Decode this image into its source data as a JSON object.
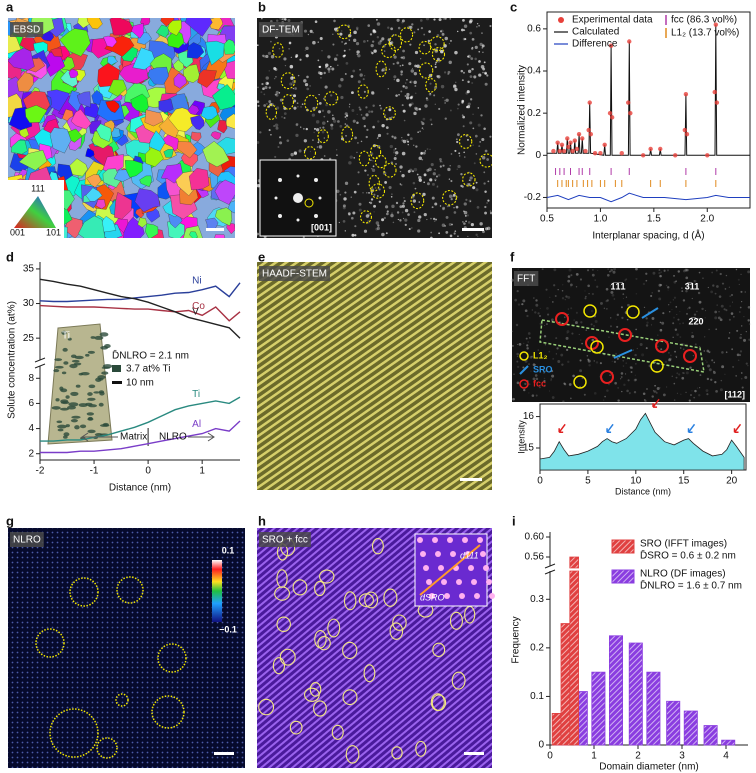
{
  "panel_labels": [
    "a",
    "b",
    "c",
    "d",
    "e",
    "f",
    "g",
    "h",
    "i"
  ],
  "images": {
    "a": {
      "label": "EBSD",
      "legend": [
        "111",
        "001",
        "101"
      ]
    },
    "b": {
      "label": "DF-TEM",
      "inset": "[001]"
    },
    "e": {
      "label": "HAADF-STEM"
    },
    "f": {
      "label": "FFT",
      "spots": [
        "1̅1̅1",
        "3̅11",
        "2̅20"
      ],
      "legend": [
        "L1₂",
        "SRO",
        "fcc"
      ],
      "zone": "[112]"
    },
    "g": {
      "label": "NLRO",
      "colorbar": [
        "0.1",
        "−0.1"
      ]
    },
    "h": {
      "label": "SRO + fcc",
      "inset_labels": [
        "d111",
        "dSRO"
      ]
    }
  },
  "chart_data": [
    {
      "type": "line",
      "xlabel": "Interplanar spacing, d (Å)",
      "ylabel": "Normalized intensity",
      "xlim": [
        0.5,
        2.4
      ],
      "xticks": [
        0.5,
        {
          "value": 1,
          "label": "1.0"
        },
        1.5,
        {
          "value": 2,
          "label": "2.0"
        }
      ],
      "ylim": [
        -0.25,
        0.68
      ],
      "yticks": [
        -0.2,
        0,
        0.2,
        0.4,
        0.6
      ],
      "series": [
        {
          "name": "Experimental data",
          "color": "#e8403a",
          "marker": "circle",
          "x": [
            0.56,
            0.6,
            0.62,
            0.64,
            0.66,
            0.69,
            0.7,
            0.72,
            0.74,
            0.76,
            0.78,
            0.8,
            0.83,
            0.86,
            0.89,
            0.9,
            0.91,
            0.95,
            1.0,
            1.04,
            1.09,
            1.1,
            1.11,
            1.2,
            1.26,
            1.27,
            1.28,
            1.4,
            1.47,
            1.56,
            1.7,
            1.79,
            1.8,
            1.81,
            2.0,
            2.07,
            2.08,
            2.09
          ],
          "values": [
            0.02,
            0.06,
            0.02,
            0.05,
            0.02,
            0.08,
            0.04,
            0.06,
            0.02,
            0.07,
            0.03,
            0.1,
            0.08,
            0.02,
            0.12,
            0.25,
            0.1,
            0.01,
            0.01,
            0.05,
            0.2,
            0.52,
            0.18,
            0.01,
            0.25,
            0.54,
            0.2,
            0.0,
            0.03,
            0.03,
            0.0,
            0.12,
            0.29,
            0.1,
            0.0,
            0.3,
            0.62,
            0.25
          ]
        },
        {
          "name": "Calculated",
          "color": "#111111",
          "x": [
            0.5,
            0.592,
            0.6,
            0.608,
            0.632,
            0.64,
            0.648,
            0.682,
            0.69,
            0.698,
            0.712,
            0.72,
            0.728,
            0.752,
            0.76,
            0.768,
            0.792,
            0.8,
            0.808,
            0.822,
            0.83,
            0.838,
            0.892,
            0.9,
            0.908,
            1.032,
            1.04,
            1.048,
            1.092,
            1.1,
            1.108,
            1.262,
            1.27,
            1.278,
            1.462,
            1.47,
            1.478,
            1.552,
            1.56,
            1.568,
            1.792,
            1.8,
            1.808,
            2.072,
            2.08,
            2.088,
            2.4
          ],
          "values": [
            0.01,
            0.01,
            0.06,
            0.01,
            0.01,
            0.05,
            0.01,
            0.01,
            0.08,
            0.01,
            0.01,
            0.06,
            0.01,
            0.01,
            0.07,
            0.01,
            0.01,
            0.1,
            0.01,
            0.01,
            0.08,
            0.01,
            0.01,
            0.25,
            0.01,
            0,
            0.05,
            0,
            0,
            0.52,
            0,
            0,
            0.54,
            0,
            0,
            0.03,
            0,
            0,
            0.03,
            0,
            0,
            0.29,
            0,
            0,
            0.62,
            0,
            0
          ]
        },
        {
          "name": "Difference",
          "color": "#1f3fbf",
          "x": [
            0.5,
            0.6,
            0.7,
            0.8,
            0.9,
            1.0,
            1.1,
            1.2,
            1.27,
            1.4,
            1.6,
            1.8,
            2.0,
            2.08,
            2.2,
            2.4
          ],
          "values": [
            -0.2,
            -0.19,
            -0.21,
            -0.19,
            -0.2,
            -0.2,
            -0.22,
            -0.2,
            -0.18,
            -0.2,
            -0.2,
            -0.21,
            -0.2,
            -0.19,
            -0.2,
            -0.2
          ]
        }
      ],
      "reflections": [
        {
          "name": "fcc (86.3 vol%)",
          "color": "#b03aa8",
          "x": [
            0.58,
            0.62,
            0.66,
            0.72,
            0.8,
            0.83,
            0.9,
            1.1,
            1.27,
            1.8,
            2.08
          ]
        },
        {
          "name": "L1₂ (13.7 vol%)",
          "color": "#e08a1e",
          "x": [
            0.6,
            0.64,
            0.68,
            0.7,
            0.74,
            0.78,
            0.84,
            0.88,
            0.92,
            1.0,
            1.04,
            1.14,
            1.2,
            1.47,
            1.56,
            1.8,
            2.08
          ]
        }
      ]
    },
    {
      "type": "line",
      "xlabel": "Distance (nm)",
      "ylabel": "Solute concentration (at%)",
      "x": [
        -2,
        -1.75,
        -1.5,
        -1.25,
        -1,
        -0.75,
        -0.5,
        -0.25,
        0,
        0.25,
        0.5,
        0.75,
        1,
        1.25,
        1.5,
        1.7
      ],
      "xlim": [
        -2,
        1.7
      ],
      "xticks": [
        -2,
        -1,
        0,
        1
      ],
      "ylim_upper": [
        23,
        36
      ],
      "yticks_upper": [
        25,
        30,
        35
      ],
      "ylim_lower": [
        1.5,
        8.5
      ],
      "yticks_lower": [
        2,
        4,
        6,
        8
      ],
      "series": [
        {
          "name": "Ni",
          "color": "#2a3f9a",
          "values": [
            30.4,
            30.3,
            30.3,
            30.4,
            30.5,
            30.6,
            30.6,
            30.8,
            31,
            31.2,
            31.5,
            31.6,
            32,
            32.5,
            31,
            33
          ]
        },
        {
          "name": "Co",
          "color": "#a83244",
          "values": [
            29.7,
            29.6,
            29.5,
            29.5,
            29.5,
            29.4,
            29.3,
            29.2,
            29.2,
            29,
            28.8,
            29,
            28.3,
            29.5,
            27.5,
            28.8
          ]
        },
        {
          "name": "V",
          "color": "#222222",
          "values": [
            33.5,
            33.2,
            32.8,
            32.5,
            32,
            31.5,
            31,
            30.7,
            30.2,
            29.5,
            28.8,
            28,
            27.5,
            27,
            26.5,
            25
          ]
        },
        {
          "name": "Ti",
          "color": "#2a8a80",
          "values": [
            3,
            3,
            3.1,
            3.1,
            3.3,
            3.5,
            3.8,
            4.1,
            4.5,
            5,
            5.5,
            5.8,
            6,
            6.2,
            6,
            6.5
          ]
        },
        {
          "name": "Al",
          "color": "#7a3dc8",
          "values": [
            2.1,
            2.1,
            2.1,
            2.2,
            2.2,
            2.3,
            2.4,
            2.6,
            2.8,
            3.0,
            3.2,
            3.4,
            3.6,
            4,
            3.8,
            4.6
          ]
        }
      ],
      "annotations": [
        "D̄NLRO = 2.1 nm",
        "3.7 at% Ti",
        "10 nm",
        "Matrix",
        "NLRO",
        "Ti"
      ]
    },
    {
      "type": "area",
      "xlabel": "Distance (nm)",
      "ylabel": "Intensity",
      "color": "#7fe3ea",
      "x": [
        0,
        1,
        1.5,
        2,
        2.5,
        3,
        4,
        5,
        6,
        6.5,
        7,
        7.5,
        8,
        9,
        10,
        10.5,
        11,
        11.5,
        12,
        13,
        14,
        15,
        15.5,
        16,
        17,
        18,
        19,
        19.5,
        20,
        20.5,
        21.3
      ],
      "values": [
        14.65,
        14.7,
        14.9,
        15.2,
        14.95,
        14.75,
        14.8,
        14.9,
        15.05,
        15.2,
        15.3,
        15.2,
        15.15,
        15.3,
        15.6,
        15.9,
        16.1,
        15.8,
        15.5,
        15.2,
        15.1,
        15.25,
        15.3,
        15.15,
        14.9,
        14.75,
        14.8,
        14.95,
        15.25,
        15.05,
        14.7
      ],
      "xlim": [
        0,
        21.5
      ],
      "xticks": [
        0,
        5,
        10,
        15,
        20
      ],
      "ylim": [
        14.3,
        16.4
      ],
      "yticks": [
        15,
        16
      ]
    },
    {
      "type": "bar",
      "xlabel": "Domain diameter (nm)",
      "ylabel": "Frequency",
      "xlim": [
        0,
        4.5
      ],
      "xticks": [
        0,
        1,
        2,
        3,
        4
      ],
      "ylim_lower": [
        0,
        0.35
      ],
      "yticks_lower": [
        0,
        0.1,
        0.2,
        0.3
      ],
      "ylim_upper": [
        0.55,
        0.61
      ],
      "yticks_upper": [
        0.56,
        {
          "value": 0.6,
          "label": "0.60"
        }
      ],
      "series": [
        {
          "name": "SRO (IFFT images)",
          "note": "D̄SRO = 0.6 ± 0.2 nm",
          "color": "#e04040",
          "x": [
            0.15,
            0.35,
            0.55
          ],
          "values": [
            0.065,
            0.25,
            0.56
          ]
        },
        {
          "name": "NLRO (DF images)",
          "note": "D̄NLRO = 1.6 ± 0.7 nm",
          "color": "#8a3de0",
          "x": [
            0.25,
            0.7,
            1.1,
            1.5,
            1.95,
            2.35,
            2.8,
            3.2,
            3.65,
            4.05
          ],
          "values": [
            0.065,
            0.11,
            0.15,
            0.225,
            0.21,
            0.15,
            0.09,
            0.07,
            0.04,
            0.01
          ]
        }
      ]
    }
  ]
}
